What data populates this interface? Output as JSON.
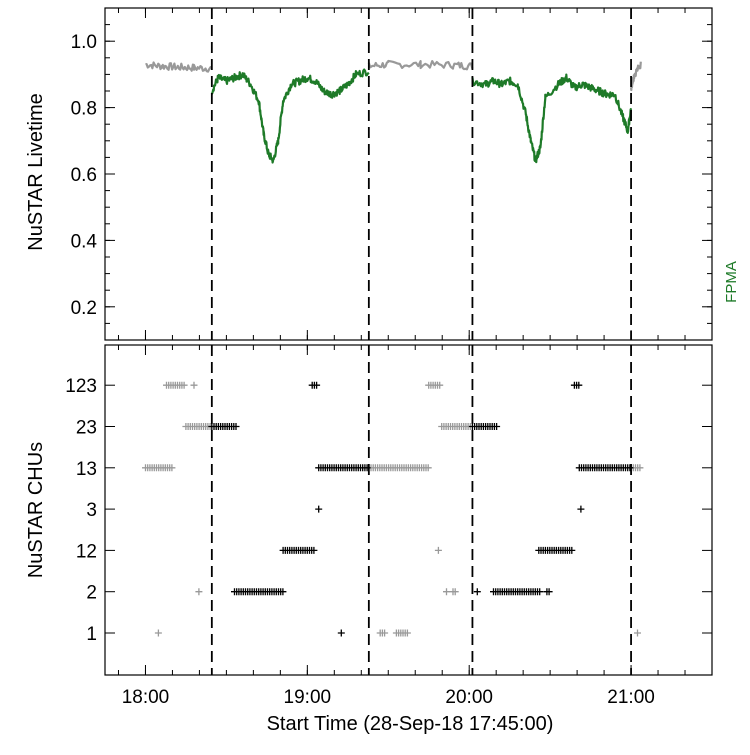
{
  "chart_data": [
    {
      "type": "line",
      "panel": "top",
      "ylabel": "NuSTAR Livetime",
      "ylim": [
        0.1,
        1.1
      ],
      "yticks": [
        0.2,
        0.4,
        0.6,
        0.8,
        1.0
      ],
      "ytick_labels": [
        "0.2",
        "0.4",
        "0.6",
        "0.8",
        "1.0"
      ],
      "side_label": "FPMA",
      "series": [
        {
          "color": "#999999",
          "segments": [
            [
              [
                18.0,
                0.93
              ],
              [
                18.1,
                0.925
              ],
              [
                18.2,
                0.922
              ],
              [
                18.3,
                0.92
              ],
              [
                18.41,
                0.918
              ]
            ],
            [
              [
                19.38,
                0.925
              ],
              [
                19.5,
                0.93
              ],
              [
                19.7,
                0.93
              ],
              [
                19.9,
                0.928
              ],
              [
                20.02,
                0.925
              ]
            ],
            [
              [
                21.0,
                0.86
              ],
              [
                21.02,
                0.9
              ],
              [
                21.06,
                0.93
              ]
            ]
          ]
        },
        {
          "color": "#1e7a28",
          "segments": [
            [
              [
                18.41,
                0.85
              ],
              [
                18.45,
                0.89
              ],
              [
                18.5,
                0.88
              ],
              [
                18.55,
                0.89
              ],
              [
                18.6,
                0.9
              ],
              [
                18.65,
                0.87
              ],
              [
                18.7,
                0.82
              ],
              [
                18.73,
                0.72
              ],
              [
                18.76,
                0.66
              ],
              [
                18.79,
                0.64
              ],
              [
                18.82,
                0.7
              ],
              [
                18.85,
                0.82
              ],
              [
                18.9,
                0.87
              ],
              [
                18.95,
                0.88
              ],
              [
                19.0,
                0.89
              ],
              [
                19.05,
                0.88
              ],
              [
                19.1,
                0.85
              ],
              [
                19.15,
                0.84
              ],
              [
                19.2,
                0.85
              ],
              [
                19.25,
                0.87
              ],
              [
                19.3,
                0.9
              ],
              [
                19.38,
                0.91
              ]
            ],
            [
              [
                20.02,
                0.88
              ],
              [
                20.1,
                0.87
              ],
              [
                20.15,
                0.88
              ],
              [
                20.2,
                0.87
              ],
              [
                20.25,
                0.88
              ],
              [
                20.3,
                0.87
              ],
              [
                20.35,
                0.78
              ],
              [
                20.38,
                0.7
              ],
              [
                20.41,
                0.64
              ],
              [
                20.44,
                0.68
              ],
              [
                20.47,
                0.83
              ],
              [
                20.55,
                0.87
              ],
              [
                20.6,
                0.89
              ],
              [
                20.65,
                0.86
              ],
              [
                20.7,
                0.87
              ],
              [
                20.75,
                0.86
              ],
              [
                20.8,
                0.85
              ],
              [
                20.85,
                0.84
              ],
              [
                20.9,
                0.84
              ],
              [
                20.95,
                0.77
              ],
              [
                20.98,
                0.73
              ],
              [
                21.0,
                0.8
              ]
            ]
          ]
        }
      ]
    },
    {
      "type": "scatter",
      "panel": "bottom",
      "ylabel": "NuSTAR CHUs",
      "xlabel": "Start Time (28-Sep-18 17:45:00)",
      "xlim": [
        17.75,
        21.5
      ],
      "xticks": [
        18.0,
        19.0,
        20.0,
        21.0
      ],
      "xtick_labels": [
        "18:00",
        "19:00",
        "20:00",
        "21:00"
      ],
      "categories": [
        "1",
        "2",
        "12",
        "3",
        "13",
        "23",
        "123"
      ],
      "series": [
        {
          "color": "#999999",
          "runs": [
            {
              "cat": "123",
              "x0": 18.13,
              "x1": 18.25
            },
            {
              "cat": "123",
              "x0": 18.3,
              "x1": 18.31
            },
            {
              "cat": "23",
              "x0": 18.25,
              "x1": 18.41
            },
            {
              "cat": "13",
              "x0": 18.0,
              "x1": 18.17
            },
            {
              "cat": "2",
              "x0": 18.33,
              "x1": 18.34
            },
            {
              "cat": "1",
              "x0": 18.08,
              "x1": 18.09
            },
            {
              "cat": "13",
              "x0": 19.38,
              "x1": 19.76
            },
            {
              "cat": "123",
              "x0": 19.75,
              "x1": 19.83
            },
            {
              "cat": "23",
              "x0": 19.83,
              "x1": 20.02
            },
            {
              "cat": "12",
              "x0": 19.81,
              "x1": 19.82
            },
            {
              "cat": "2",
              "x0": 19.86,
              "x1": 19.87
            },
            {
              "cat": "2",
              "x0": 19.9,
              "x1": 19.92
            },
            {
              "cat": "1",
              "x0": 19.45,
              "x1": 19.49
            },
            {
              "cat": "1",
              "x0": 19.55,
              "x1": 19.63
            },
            {
              "cat": "13",
              "x0": 21.0,
              "x1": 21.06
            },
            {
              "cat": "1",
              "x0": 21.04,
              "x1": 21.05
            }
          ]
        },
        {
          "color": "#000000",
          "runs": [
            {
              "cat": "23",
              "x0": 18.41,
              "x1": 18.56
            },
            {
              "cat": "2",
              "x0": 18.55,
              "x1": 18.85
            },
            {
              "cat": "12",
              "x0": 18.85,
              "x1": 19.05
            },
            {
              "cat": "123",
              "x0": 19.03,
              "x1": 19.06
            },
            {
              "cat": "3",
              "x0": 19.07,
              "x1": 19.08
            },
            {
              "cat": "13",
              "x0": 19.07,
              "x1": 19.38
            },
            {
              "cat": "1",
              "x0": 19.21,
              "x1": 19.22
            },
            {
              "cat": "23",
              "x0": 20.02,
              "x1": 20.17
            },
            {
              "cat": "2",
              "x0": 20.05,
              "x1": 20.06
            },
            {
              "cat": "2",
              "x0": 20.15,
              "x1": 20.44
            },
            {
              "cat": "2",
              "x0": 20.48,
              "x1": 20.5
            },
            {
              "cat": "12",
              "x0": 20.43,
              "x1": 20.64
            },
            {
              "cat": "123",
              "x0": 20.65,
              "x1": 20.68
            },
            {
              "cat": "3",
              "x0": 20.69,
              "x1": 20.7
            },
            {
              "cat": "13",
              "x0": 20.68,
              "x1": 21.0
            }
          ]
        }
      ]
    }
  ],
  "dashed_lines_x": [
    18.41,
    19.38,
    20.02,
    21.0
  ]
}
